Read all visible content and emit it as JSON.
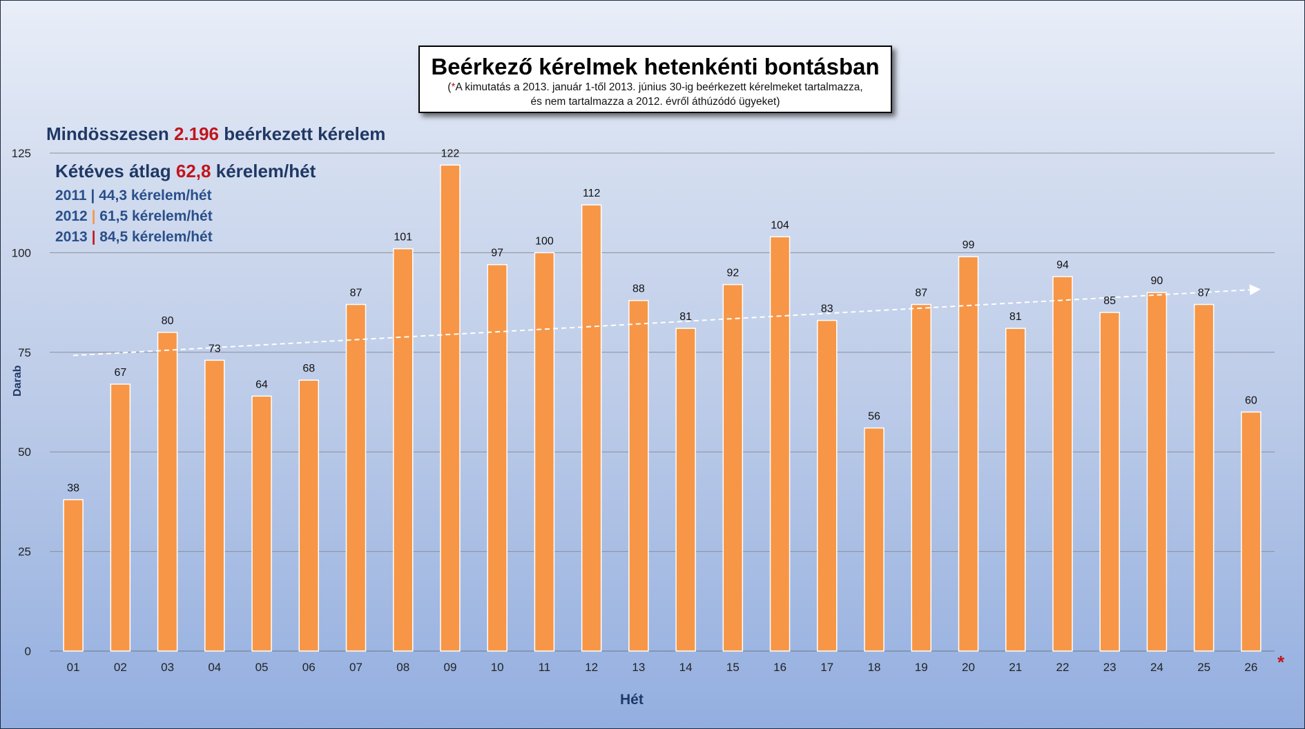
{
  "title": "Beérkező kérelmek hetenkénti bontásban",
  "note": {
    "open": "(",
    "star": "*",
    "line1_rest": "A kimutatás a 2013. január 1-től 2013. június 30-ig beérkezett kérelmeket tartalmazza,",
    "line2": "és nem tartalmazza a 2012. évről áthúzódó ügyeket)"
  },
  "summary": {
    "total_prefix": "Mindösszesen",
    "total_value": "2.196",
    "total_suffix": "beérkezett kérelem",
    "avg_prefix": "Kétéves átlag",
    "avg_value": "62,8",
    "avg_suffix": "kérelem/hét",
    "years": [
      {
        "year": "2011",
        "sep": "|",
        "text": "44,3 kérelem/hét",
        "sep_color": "#2a4f8a"
      },
      {
        "year": "2012",
        "sep": "|",
        "text": "61,5 kérelem/hét",
        "sep_color": "#f79646"
      },
      {
        "year": "2013",
        "sep": "|",
        "text": "84,5 kérelem/hét",
        "sep_color": "#c0161c"
      }
    ]
  },
  "footnote_star": "*",
  "colors": {
    "bar": "#f79646",
    "accent_red": "#c0161c",
    "text_blue": "#1f3864",
    "trend": "#ffffff"
  },
  "chart_data": {
    "type": "bar",
    "title": "Beérkező kérelmek hetenkénti bontásban",
    "xlabel": "Hét",
    "ylabel": "Darab",
    "ylim": [
      0,
      125
    ],
    "yticks": [
      0,
      25,
      50,
      75,
      100,
      125
    ],
    "grid": true,
    "categories": [
      "01",
      "02",
      "03",
      "04",
      "05",
      "06",
      "07",
      "08",
      "09",
      "10",
      "11",
      "12",
      "13",
      "14",
      "15",
      "16",
      "17",
      "18",
      "19",
      "20",
      "21",
      "22",
      "23",
      "24",
      "25",
      "26"
    ],
    "values": [
      38,
      67,
      80,
      73,
      64,
      68,
      87,
      101,
      122,
      97,
      100,
      112,
      88,
      81,
      92,
      104,
      83,
      56,
      87,
      99,
      81,
      94,
      85,
      90,
      87,
      60
    ],
    "trendline": {
      "style": "dashed-arrow",
      "start": 74.2,
      "end": 90.8
    }
  }
}
